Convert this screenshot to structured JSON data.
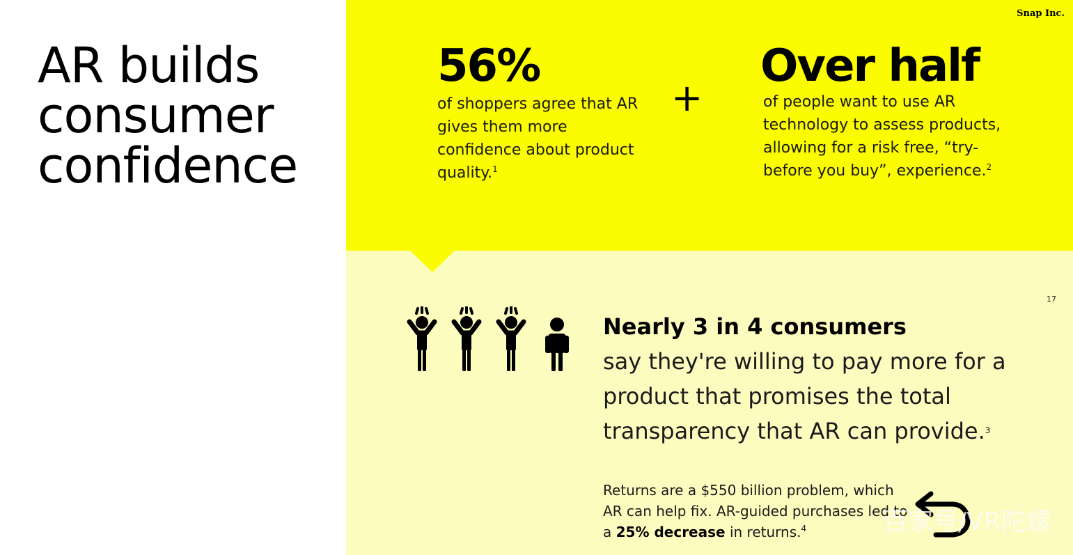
{
  "headline": "AR builds consumer confidence",
  "brand": "Snap Inc.",
  "stats": [
    {
      "value": "56%",
      "text": "of shoppers agree that AR gives them more confidence about product quality.",
      "footnote": "1"
    },
    {
      "value": "Over half",
      "text": "of people want to use AR technology to assess products, allowing for a risk free, “try-before you buy”, experience.",
      "footnote": "2"
    }
  ],
  "plus_symbol": "+",
  "page_number": "17",
  "consumer": {
    "headline": "Nearly 3 in 4 consumers",
    "body": "say they're willing to pay more for a product that promises the total transparency that AR can provide.",
    "footnote": "3"
  },
  "returns": {
    "text_before": "Returns are a $550 billion problem, which AR can help fix. AR-guided purchases led to a",
    "highlight": "25% decrease",
    "text_after": "in returns.",
    "footnote": "4"
  },
  "icons": {
    "people": [
      "raised-arms-person-icon",
      "raised-arms-person-icon",
      "raised-arms-person-icon",
      "standing-person-icon"
    ],
    "return": "return-arrow-icon"
  },
  "watermark": "百家号/VR陀螺",
  "colors": {
    "yellow": "#fbfc00",
    "pale_yellow": "#fdfcbf",
    "text": "#111111"
  }
}
